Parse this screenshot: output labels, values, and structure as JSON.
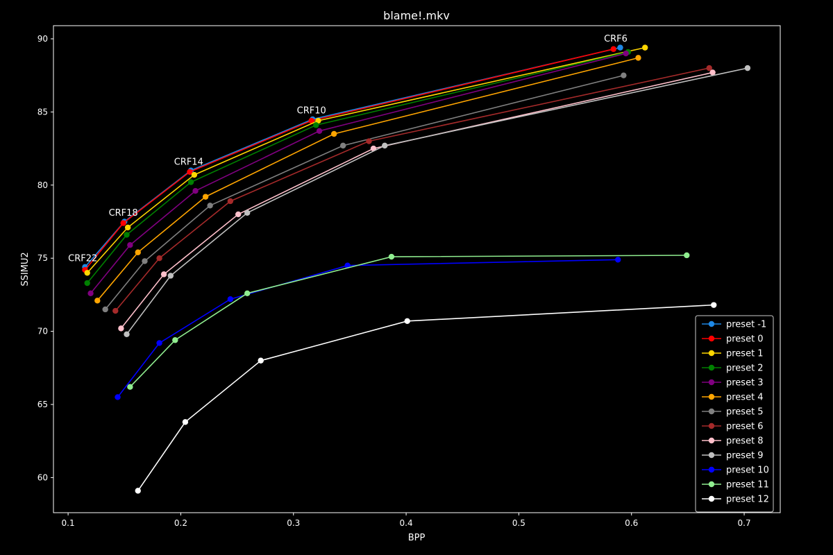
{
  "chart_data": {
    "type": "line",
    "title": "blame!.mkv",
    "xlabel": "BPP",
    "ylabel": "SSIMU2",
    "xlim": [
      0.087,
      0.732
    ],
    "ylim": [
      57.6,
      90.9
    ],
    "xticks": [
      "0.1",
      "0.2",
      "0.3",
      "0.4",
      "0.5",
      "0.6",
      "0.7"
    ],
    "yticks": [
      "60",
      "65",
      "70",
      "75",
      "80",
      "85",
      "90"
    ],
    "grid": false,
    "legend_position": "lower-right",
    "annotations": [
      {
        "text": "CRF22",
        "x": 0.113,
        "y": 74.8
      },
      {
        "text": "CRF18",
        "x": 0.149,
        "y": 77.9
      },
      {
        "text": "CRF14",
        "x": 0.207,
        "y": 81.4
      },
      {
        "text": "CRF10",
        "x": 0.316,
        "y": 84.9
      },
      {
        "text": "CRF6",
        "x": 0.586,
        "y": 89.8
      }
    ],
    "series": [
      {
        "name": "preset -1",
        "color": "#1e88e5",
        "x": [
          0.115,
          0.15,
          0.209,
          0.317,
          0.59
        ],
        "y": [
          74.4,
          77.5,
          81.0,
          84.5,
          89.4
        ]
      },
      {
        "name": "preset 0",
        "color": "#ff0000",
        "x": [
          0.115,
          0.149,
          0.208,
          0.316,
          0.584
        ],
        "y": [
          74.2,
          77.4,
          80.9,
          84.4,
          89.3
        ]
      },
      {
        "name": "preset 1",
        "color": "#ffd700",
        "x": [
          0.117,
          0.153,
          0.212,
          0.322,
          0.612
        ],
        "y": [
          74.0,
          77.1,
          80.7,
          84.4,
          89.4
        ]
      },
      {
        "name": "preset 2",
        "color": "#008000",
        "x": [
          0.117,
          0.152,
          0.209,
          0.32,
          0.597
        ],
        "y": [
          73.3,
          76.6,
          80.2,
          84.1,
          89.1
        ]
      },
      {
        "name": "preset 3",
        "color": "#800080",
        "x": [
          0.12,
          0.155,
          0.213,
          0.323,
          0.595
        ],
        "y": [
          72.6,
          75.9,
          79.6,
          83.7,
          89.0
        ]
      },
      {
        "name": "preset 4",
        "color": "#ffa500",
        "x": [
          0.126,
          0.162,
          0.222,
          0.336,
          0.606
        ],
        "y": [
          72.1,
          75.4,
          79.2,
          83.5,
          88.7
        ]
      },
      {
        "name": "preset 5",
        "color": "#808080",
        "x": [
          0.133,
          0.168,
          0.226,
          0.344,
          0.593
        ],
        "y": [
          71.5,
          74.8,
          78.6,
          82.7,
          87.5
        ]
      },
      {
        "name": "preset 6",
        "color": "#a52a2a",
        "x": [
          0.142,
          0.181,
          0.244,
          0.367,
          0.669
        ],
        "y": [
          71.4,
          75.0,
          78.9,
          83.0,
          88.0
        ]
      },
      {
        "name": "preset 8",
        "color": "#ffc0cb",
        "x": [
          0.147,
          0.185,
          0.251,
          0.371,
          0.672
        ],
        "y": [
          70.2,
          73.9,
          78.0,
          82.5,
          87.7
        ]
      },
      {
        "name": "preset 9",
        "color": "#c0c0c0",
        "x": [
          0.152,
          0.191,
          0.259,
          0.381,
          0.703
        ],
        "y": [
          69.8,
          73.8,
          78.1,
          82.7,
          88.0
        ]
      },
      {
        "name": "preset 10",
        "color": "#0000ff",
        "x": [
          0.144,
          0.181,
          0.244,
          0.348,
          0.588
        ],
        "y": [
          65.5,
          69.2,
          72.2,
          74.5,
          74.9
        ]
      },
      {
        "name": "preset 11",
        "color": "#90ee90",
        "x": [
          0.155,
          0.195,
          0.259,
          0.387,
          0.649
        ],
        "y": [
          66.2,
          69.4,
          72.6,
          75.1,
          75.2
        ]
      },
      {
        "name": "preset 12",
        "color": "#ffffff",
        "x": [
          0.162,
          0.204,
          0.271,
          0.401,
          0.673
        ],
        "y": [
          59.1,
          63.8,
          68.0,
          70.7,
          71.8
        ]
      }
    ]
  }
}
